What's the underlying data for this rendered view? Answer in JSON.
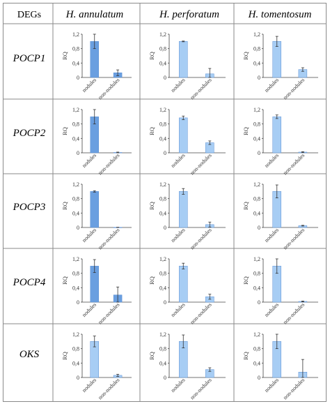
{
  "table": {
    "corner_label": "DEGs",
    "species": [
      "H. annulatum",
      "H. perforatum",
      "H. tomentosum"
    ],
    "genes": [
      "POCP1",
      "POCP2",
      "POCP3",
      "POCP4",
      "OKS"
    ]
  },
  "colors": {
    "bar_dark": "#6a9fe0",
    "bar_light": "#a7cdf4",
    "bar_stroke": "#5b8fd4",
    "border": "#8a8a8a",
    "axis": "#444444"
  },
  "chart_data": [
    {
      "gene": "POCP1",
      "species": "H. annulatum",
      "type": "bar",
      "categories": [
        "nodules",
        "non-nodules"
      ],
      "values": [
        1.0,
        0.13
      ],
      "errors": [
        0.2,
        0.08
      ],
      "ylabel": "RQ",
      "ylim": [
        0,
        1.2
      ],
      "yticks": [
        "0",
        "0,4",
        "0,8",
        "1,2"
      ],
      "color": "dark"
    },
    {
      "gene": "POCP1",
      "species": "H. perforatum",
      "type": "bar",
      "categories": [
        "nodules",
        "non-nodules"
      ],
      "values": [
        1.0,
        0.1
      ],
      "errors": [
        0.01,
        0.15
      ],
      "ylabel": "RQ",
      "ylim": [
        0,
        1.2
      ],
      "yticks": [
        "0",
        "0,4",
        "0,8",
        "1,2"
      ],
      "color": "light"
    },
    {
      "gene": "POCP1",
      "species": "H. tomentosum",
      "type": "bar",
      "categories": [
        "nodules",
        "non-nodules"
      ],
      "values": [
        1.0,
        0.22
      ],
      "errors": [
        0.14,
        0.05
      ],
      "ylabel": "RQ",
      "ylim": [
        0,
        1.2
      ],
      "yticks": [
        "0",
        "0,4",
        "0,8",
        "1,2"
      ],
      "color": "light"
    },
    {
      "gene": "POCP2",
      "species": "H. annulatum",
      "type": "bar",
      "categories": [
        "nodules",
        "non-nodules"
      ],
      "values": [
        1.0,
        0.01
      ],
      "errors": [
        0.2,
        0.01
      ],
      "ylabel": "RQ",
      "ylim": [
        0,
        1.2
      ],
      "yticks": [
        "0",
        "0,4",
        "0,8",
        "1,2"
      ],
      "color": "dark"
    },
    {
      "gene": "POCP2",
      "species": "H. perforatum",
      "type": "bar",
      "categories": [
        "nodules",
        "non-nodules"
      ],
      "values": [
        0.97,
        0.28
      ],
      "errors": [
        0.05,
        0.05
      ],
      "ylabel": "RQ",
      "ylim": [
        0,
        1.2
      ],
      "yticks": [
        "0",
        "0,4",
        "0,8",
        "1,2"
      ],
      "color": "light"
    },
    {
      "gene": "POCP2",
      "species": "H. tomentosum",
      "type": "bar",
      "categories": [
        "nodules",
        "non-nodules"
      ],
      "values": [
        1.0,
        0.02
      ],
      "errors": [
        0.05,
        0.01
      ],
      "ylabel": "RQ",
      "ylim": [
        0,
        1.2
      ],
      "yticks": [
        "0",
        "0,4",
        "0,8",
        "1,2"
      ],
      "color": "light"
    },
    {
      "gene": "POCP3",
      "species": "H. annulatum",
      "type": "bar",
      "categories": [
        "nodules",
        "non-nodules"
      ],
      "values": [
        1.0,
        0.003
      ],
      "errors": [
        0.02,
        0.003
      ],
      "ylabel": "RQ",
      "ylim": [
        0,
        1.2
      ],
      "yticks": [
        "0",
        "0,4",
        "0,8",
        "1,2"
      ],
      "color": "dark"
    },
    {
      "gene": "POCP3",
      "species": "H. perforatum",
      "type": "bar",
      "categories": [
        "nodules",
        "non-nodules"
      ],
      "values": [
        1.0,
        0.08
      ],
      "errors": [
        0.08,
        0.07
      ],
      "ylabel": "RQ",
      "ylim": [
        0,
        1.2
      ],
      "yticks": [
        "0",
        "0,4",
        "0,8",
        "1,2"
      ],
      "color": "light"
    },
    {
      "gene": "POCP3",
      "species": "H. tomentosum",
      "type": "bar",
      "categories": [
        "nodules",
        "non-nodules"
      ],
      "values": [
        1.0,
        0.05
      ],
      "errors": [
        0.18,
        0.01
      ],
      "ylabel": "RQ",
      "ylim": [
        0,
        1.2
      ],
      "yticks": [
        "0",
        "0,4",
        "0,8",
        "1,2"
      ],
      "color": "light"
    },
    {
      "gene": "POCP4",
      "species": "H. annulatum",
      "type": "bar",
      "categories": [
        "nodules",
        "non-nodules"
      ],
      "values": [
        1.0,
        0.2
      ],
      "errors": [
        0.18,
        0.22
      ],
      "ylabel": "RQ",
      "ylim": [
        0,
        1.2
      ],
      "yticks": [
        "0",
        "0,4",
        "0,8",
        "1,2"
      ],
      "color": "dark"
    },
    {
      "gene": "POCP4",
      "species": "H. perforatum",
      "type": "bar",
      "categories": [
        "nodules",
        "non-nodules"
      ],
      "values": [
        1.0,
        0.15
      ],
      "errors": [
        0.08,
        0.07
      ],
      "ylabel": "RQ",
      "ylim": [
        0,
        1.2
      ],
      "yticks": [
        "0",
        "0,4",
        "0,8",
        "1,2"
      ],
      "color": "light"
    },
    {
      "gene": "POCP4",
      "species": "H. tomentosum",
      "type": "bar",
      "categories": [
        "nodules",
        "non-nodules"
      ],
      "values": [
        1.0,
        0.02
      ],
      "errors": [
        0.2,
        0.01
      ],
      "ylabel": "RQ",
      "ylim": [
        0,
        1.2
      ],
      "yticks": [
        "0",
        "0,4",
        "0,8",
        "1,2"
      ],
      "color": "light"
    },
    {
      "gene": "OKS",
      "species": "H. annulatum",
      "type": "bar",
      "categories": [
        "nodules",
        "non-nodules"
      ],
      "values": [
        1.0,
        0.06
      ],
      "errors": [
        0.15,
        0.03
      ],
      "ylabel": "RQ",
      "ylim": [
        0,
        1.2
      ],
      "yticks": [
        "0",
        "0,4",
        "0,8",
        "1,2"
      ],
      "color": "light"
    },
    {
      "gene": "OKS",
      "species": "H. perforatum",
      "type": "bar",
      "categories": [
        "nodules",
        "non-nodules"
      ],
      "values": [
        1.0,
        0.22
      ],
      "errors": [
        0.18,
        0.05
      ],
      "ylabel": "RQ",
      "ylim": [
        0,
        1.2
      ],
      "yticks": [
        "0",
        "0,4",
        "0,8",
        "1,2"
      ],
      "color": "light"
    },
    {
      "gene": "OKS",
      "species": "H. tomentosum",
      "type": "bar",
      "categories": [
        "nodules",
        "non-nodules"
      ],
      "values": [
        1.0,
        0.15
      ],
      "errors": [
        0.2,
        0.35
      ],
      "ylabel": "RQ",
      "ylim": [
        0,
        1.2
      ],
      "yticks": [
        "0",
        "0,4",
        "0,8",
        "1,2"
      ],
      "color": "light"
    }
  ]
}
